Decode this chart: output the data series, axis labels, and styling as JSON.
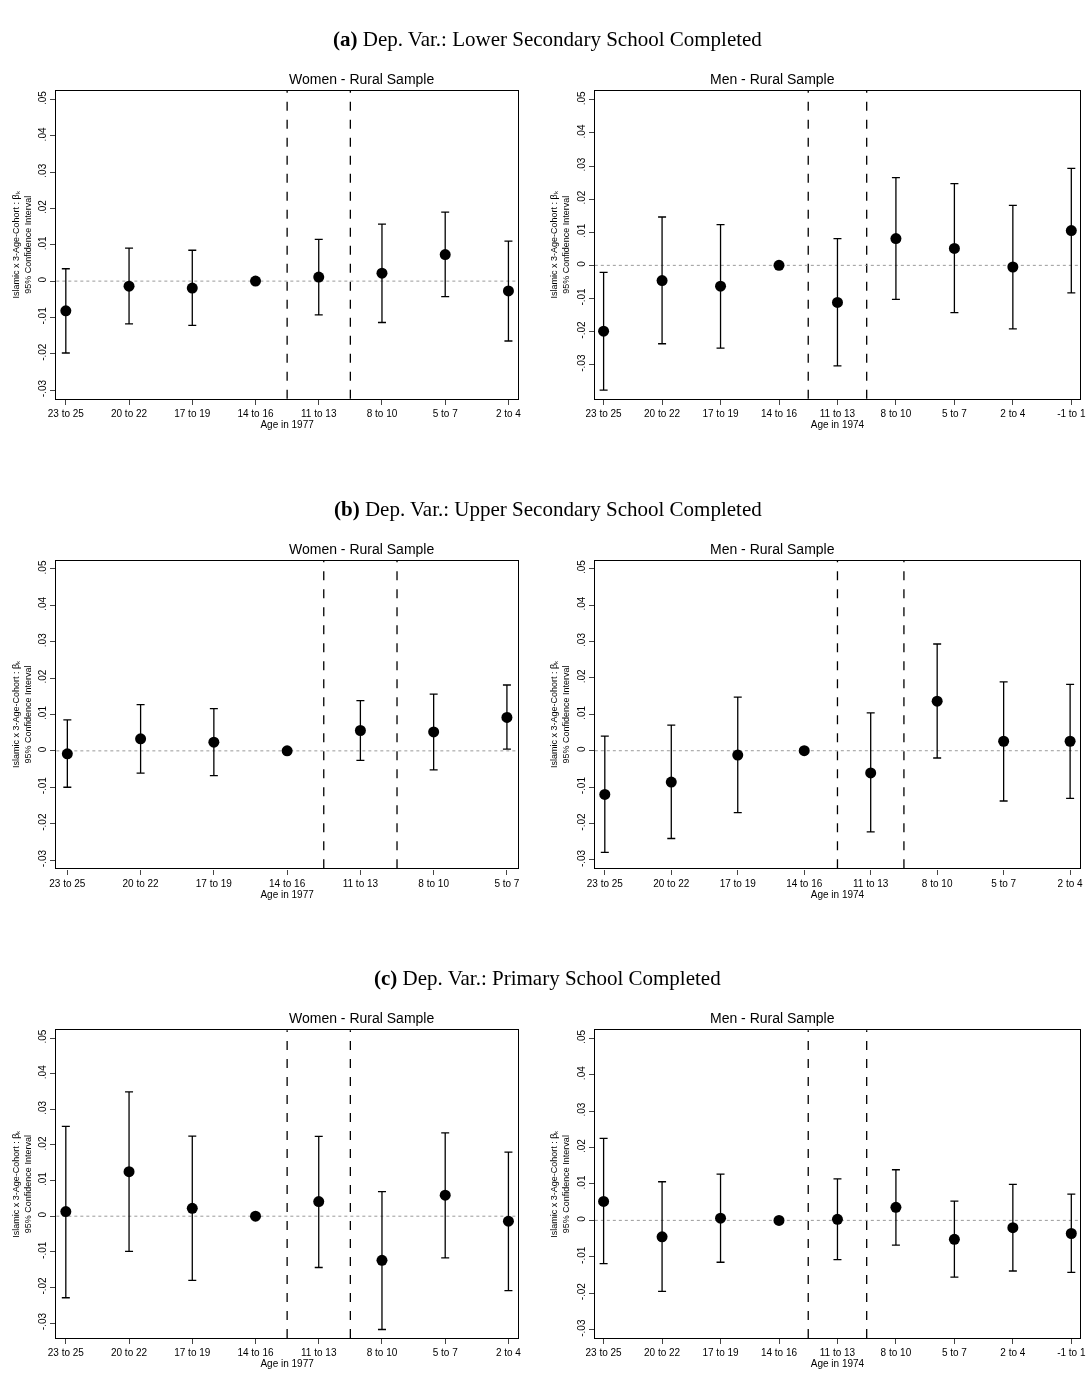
{
  "chart_data": [
    {
      "type": "scatter",
      "title": "Women - Rural Sample",
      "annotations": [
        "(a) Dep. Var.: Lower Secondary School Completed"
      ],
      "xlabel": "Age in 1977",
      "ylabel": "Islamic x 3-Age-Cohort : βₖ\n95% Confidence Interval",
      "categories": [
        "23 to 25",
        "20 to 22",
        "17 to 19",
        "14 to 16",
        "11 to 13",
        "8 to 10",
        "5 to 7",
        "2 to 4"
      ],
      "series": [
        {
          "color": "#000000",
          "values": [
            -0.0082,
            -0.0014,
            -0.0019,
            0,
            0.0011,
            0.0022,
            0.0073,
            -0.0027
          ],
          "errors": [
            [
              -0.0198,
              0.0034
            ],
            [
              -0.0118,
              0.0091
            ],
            [
              -0.0122,
              0.0085
            ],
            null,
            [
              -0.0093,
              0.0115
            ],
            [
              -0.0114,
              0.0157
            ],
            [
              -0.0043,
              0.019
            ],
            [
              -0.0165,
              0.011
            ]
          ]
        }
      ],
      "marker": "circle",
      "ylim": [
        -0.0324,
        0.0524
      ],
      "yticks": [
        {
          "value": -0.03,
          "label": "-.03"
        },
        {
          "value": -0.02,
          "label": "-.02"
        },
        {
          "value": -0.01,
          "label": "-.01"
        },
        0,
        {
          "value": 0.01,
          "label": ".01"
        },
        {
          "value": 0.02,
          "label": ".02"
        },
        {
          "value": 0.03,
          "label": ".03"
        },
        {
          "value": 0.04,
          "label": ".04"
        },
        {
          "value": 0.05,
          "label": ".05"
        }
      ],
      "ref_lines": [
        {
          "axis": "y",
          "value": 0,
          "color": "#9a9a9a",
          "line_style": "dotted"
        }
      ],
      "grid": false
    },
    {
      "type": "scatter",
      "title": "Men - Rural Sample",
      "xlabel": "Age in 1974",
      "ylabel": "Islamic x 3-Age-Cohort : βₖ\n95% Confidence Interval",
      "categories": [
        "23 to 25",
        "20 to 22",
        "17 to 19",
        "14 to 16",
        "11 to 13",
        "8 to 10",
        "5 to 7",
        "2 to 4",
        "-1 to 1"
      ],
      "series": [
        {
          "color": "#000000",
          "values": [
            -0.0199,
            -0.0046,
            -0.0063,
            0,
            -0.0112,
            0.0081,
            0.0051,
            -0.0005,
            0.0105
          ],
          "errors": [
            [
              -0.0377,
              -0.0021
            ],
            [
              -0.0237,
              0.0146
            ],
            [
              -0.025,
              0.0123
            ],
            null,
            [
              -0.0304,
              0.0081
            ],
            [
              -0.0103,
              0.0265
            ],
            [
              -0.0143,
              0.0247
            ],
            [
              -0.0192,
              0.0181
            ],
            [
              -0.0083,
              0.0293
            ]
          ]
        }
      ],
      "marker": "circle",
      "ylim": [
        -0.0403,
        0.0527
      ],
      "yticks": [
        {
          "value": -0.03,
          "label": "-.03"
        },
        {
          "value": -0.02,
          "label": "-.02"
        },
        {
          "value": -0.01,
          "label": "-.01"
        },
        0,
        {
          "value": 0.01,
          "label": ".01"
        },
        {
          "value": 0.02,
          "label": ".02"
        },
        {
          "value": 0.03,
          "label": ".03"
        },
        {
          "value": 0.04,
          "label": ".04"
        },
        {
          "value": 0.05,
          "label": ".05"
        }
      ],
      "ref_lines": [
        {
          "axis": "y",
          "value": 0,
          "color": "#9a9a9a",
          "line_style": "dotted"
        }
      ],
      "grid": false
    },
    {
      "type": "scatter",
      "title": "Women - Rural Sample",
      "annotations": [
        "(b) Dep. Var.: Upper Secondary School Completed"
      ],
      "xlabel": "Age in 1977",
      "ylabel": "Islamic x 3-Age-Cohort : βₖ\n95% Confidence Interval",
      "categories": [
        "23 to 25",
        "20 to 22",
        "17 to 19",
        "14 to 16",
        "11 to 13",
        "8 to 10",
        "5 to 7"
      ],
      "series": [
        {
          "color": "#000000",
          "values": [
            -0.0008,
            0.0033,
            0.0024,
            0,
            0.0056,
            0.0052,
            0.0092
          ],
          "errors": [
            [
              -0.01,
              0.0085
            ],
            [
              -0.0061,
              0.0127
            ],
            [
              -0.0068,
              0.0116
            ],
            null,
            [
              -0.0026,
              0.0138
            ],
            [
              -0.0052,
              0.0156
            ],
            [
              0.0005,
              0.0181
            ]
          ]
        }
      ],
      "marker": "circle",
      "ylim": [
        -0.0323,
        0.0523
      ],
      "yticks": [
        {
          "value": -0.03,
          "label": "-.03"
        },
        {
          "value": -0.02,
          "label": "-.02"
        },
        {
          "value": -0.01,
          "label": "-.01"
        },
        0,
        {
          "value": 0.01,
          "label": ".01"
        },
        {
          "value": 0.02,
          "label": ".02"
        },
        {
          "value": 0.03,
          "label": ".03"
        },
        {
          "value": 0.04,
          "label": ".04"
        },
        {
          "value": 0.05,
          "label": ".05"
        }
      ],
      "ref_lines": [
        {
          "axis": "y",
          "value": 0,
          "color": "#9a9a9a",
          "line_style": "dotted"
        }
      ],
      "grid": false
    },
    {
      "type": "scatter",
      "title": "Men - Rural Sample",
      "xlabel": "Age in 1974",
      "ylabel": "Islamic x 3-Age-Cohort : βₖ\n95% Confidence Interval",
      "categories": [
        "23 to 25",
        "20 to 22",
        "17 to 19",
        "14 to 16",
        "11 to 13",
        "8 to 10",
        "5 to 7",
        "2 to 4"
      ],
      "series": [
        {
          "color": "#000000",
          "values": [
            -0.012,
            -0.0086,
            -0.0012,
            0,
            -0.0061,
            0.0136,
            0.0026,
            0.0026
          ],
          "errors": [
            [
              -0.0279,
              0.004
            ],
            [
              -0.0241,
              0.007
            ],
            [
              -0.017,
              0.0147
            ],
            null,
            [
              -0.0223,
              0.0104
            ],
            [
              -0.002,
              0.0293
            ],
            [
              -0.0138,
              0.0189
            ],
            [
              -0.0131,
              0.0182
            ]
          ]
        }
      ],
      "marker": "circle",
      "ylim": [
        -0.0323,
        0.0522
      ],
      "yticks": [
        {
          "value": -0.03,
          "label": "-.03"
        },
        {
          "value": -0.02,
          "label": "-.02"
        },
        {
          "value": -0.01,
          "label": "-.01"
        },
        0,
        {
          "value": 0.01,
          "label": ".01"
        },
        {
          "value": 0.02,
          "label": ".02"
        },
        {
          "value": 0.03,
          "label": ".03"
        },
        {
          "value": 0.04,
          "label": ".04"
        },
        {
          "value": 0.05,
          "label": ".05"
        }
      ],
      "ref_lines": [
        {
          "axis": "y",
          "value": 0,
          "color": "#9a9a9a",
          "line_style": "dotted"
        }
      ],
      "grid": false
    },
    {
      "type": "scatter",
      "title": "Women - Rural Sample",
      "annotations": [
        "(c) Dep. Var.: Primary School Completed"
      ],
      "xlabel": "Age in 1977",
      "ylabel": "Islamic x 3-Age-Cohort : βₖ\n95% Confidence Interval",
      "categories": [
        "23 to 25",
        "20 to 22",
        "17 to 19",
        "14 to 16",
        "11 to 13",
        "8 to 10",
        "5 to 7",
        "2 to 4"
      ],
      "series": [
        {
          "color": "#000000",
          "values": [
            0.0013,
            0.0125,
            0.0022,
            0,
            0.0041,
            -0.0124,
            0.0059,
            -0.0014
          ],
          "errors": [
            [
              -0.0229,
              0.0252
            ],
            [
              -0.0099,
              0.0349
            ],
            [
              -0.018,
              0.0225
            ],
            null,
            [
              -0.0144,
              0.0224
            ],
            [
              -0.0318,
              0.0069
            ],
            [
              -0.0117,
              0.0234
            ],
            [
              -0.0209,
              0.018
            ]
          ]
        }
      ],
      "marker": "circle",
      "ylim": [
        -0.0342,
        0.0522
      ],
      "yticks": [
        {
          "value": -0.03,
          "label": "-.03"
        },
        {
          "value": -0.02,
          "label": "-.02"
        },
        {
          "value": -0.01,
          "label": "-.01"
        },
        0,
        {
          "value": 0.01,
          "label": ".01"
        },
        {
          "value": 0.02,
          "label": ".02"
        },
        {
          "value": 0.03,
          "label": ".03"
        },
        {
          "value": 0.04,
          "label": ".04"
        },
        {
          "value": 0.05,
          "label": ".05"
        }
      ],
      "ref_lines": [
        {
          "axis": "y",
          "value": 0,
          "color": "#9a9a9a",
          "line_style": "dotted"
        }
      ],
      "grid": false
    },
    {
      "type": "scatter",
      "title": "Men - Rural Sample",
      "xlabel": "Age in 1974",
      "ylabel": "Islamic x 3-Age-Cohort : βₖ\n95% Confidence Interval",
      "categories": [
        "23 to 25",
        "20 to 22",
        "17 to 19",
        "14 to 16",
        "11 to 13",
        "8 to 10",
        "5 to 7",
        "2 to 4",
        "-1 to 1"
      ],
      "series": [
        {
          "color": "#000000",
          "values": [
            0.0052,
            -0.0045,
            0.0006,
            0,
            0.0003,
            0.0036,
            -0.0052,
            -0.002,
            -0.0036
          ],
          "errors": [
            [
              -0.0119,
              0.0225
            ],
            [
              -0.0195,
              0.0106
            ],
            [
              -0.0115,
              0.0127
            ],
            null,
            [
              -0.0108,
              0.0114
            ],
            [
              -0.0068,
              0.0139
            ],
            [
              -0.0156,
              0.0053
            ],
            [
              -0.0139,
              0.0099
            ],
            [
              -0.0143,
              0.0072
            ]
          ]
        }
      ],
      "marker": "circle",
      "ylim": [
        -0.0323,
        0.0522
      ],
      "yticks": [
        {
          "value": -0.03,
          "label": "-.03"
        },
        {
          "value": -0.02,
          "label": "-.02"
        },
        {
          "value": -0.01,
          "label": "-.01"
        },
        0,
        {
          "value": 0.01,
          "label": ".01"
        },
        {
          "value": 0.02,
          "label": ".02"
        },
        {
          "value": 0.03,
          "label": ".03"
        },
        {
          "value": 0.04,
          "label": ".04"
        },
        {
          "value": 0.05,
          "label": ".05"
        }
      ],
      "ref_lines": [
        {
          "axis": "y",
          "value": 0,
          "color": "#9a9a9a",
          "line_style": "dotted"
        }
      ],
      "grid": false
    }
  ]
}
